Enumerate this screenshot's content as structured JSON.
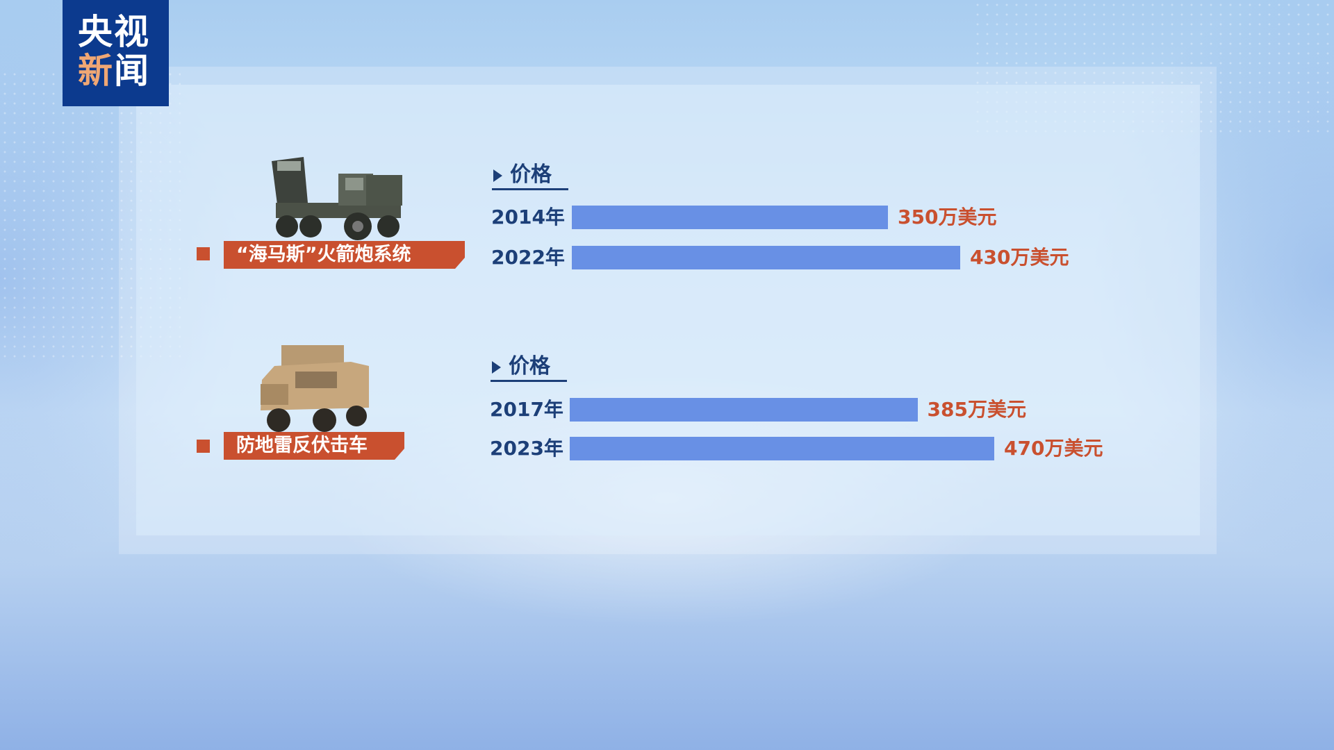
{
  "logo": {
    "line1": "央视",
    "line2a": "新",
    "line2b": "闻"
  },
  "colors": {
    "bar": "#6890e5",
    "label_bg": "#c9502f",
    "value_text": "#c9502f",
    "year_text": "#1c3f78",
    "logo_bg": "#0c3a8e"
  },
  "chart_data": [
    {
      "type": "bar",
      "orientation": "horizontal",
      "title": "“海马斯”火箭炮系统",
      "header": "价格",
      "categories": [
        "2014年",
        "2022年"
      ],
      "values": [
        350,
        430
      ],
      "value_labels": [
        "350万美元",
        "430万美元"
      ],
      "unit": "万美元"
    },
    {
      "type": "bar",
      "orientation": "horizontal",
      "title": "防地雷反伏击车",
      "header": "价格",
      "categories": [
        "2017年",
        "2023年"
      ],
      "values": [
        385,
        470
      ],
      "value_labels": [
        "385万美元",
        "470万美元"
      ],
      "unit": "万美元"
    }
  ]
}
